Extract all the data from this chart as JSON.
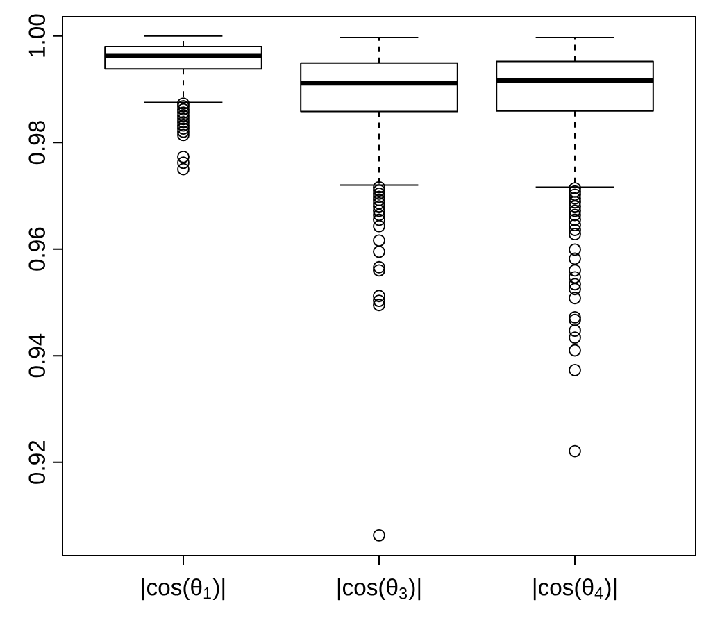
{
  "chart_data": {
    "type": "box",
    "categories": [
      "|cos(θ$_{1}$)|",
      "|cos(θ$_{3}$)|",
      "|cos(θ$_{4}$)|"
    ],
    "ylim": [
      0.9025,
      1.0036
    ],
    "yticks": [
      0.92,
      0.94,
      0.96,
      0.98,
      {
        "value": 1.0,
        "label": "1.00"
      }
    ],
    "boxes": [
      {
        "low": 0.9875,
        "q1": 0.9938,
        "median": 0.9962,
        "q3": 0.998,
        "high": 1.0,
        "outliers": [
          0.9873,
          0.9868,
          0.9862,
          0.9856,
          0.985,
          0.9844,
          0.9838,
          0.9832,
          0.9826,
          0.982,
          0.9814,
          0.9773,
          0.9762,
          0.975
        ]
      },
      {
        "low": 0.972,
        "q1": 0.9858,
        "median": 0.9911,
        "q3": 0.9949,
        "high": 0.9997,
        "outliers": [
          0.9716,
          0.971,
          0.9704,
          0.9698,
          0.9692,
          0.9686,
          0.968,
          0.9672,
          0.9664,
          0.9655,
          0.9643,
          0.9616,
          0.9595,
          0.9566,
          0.956,
          0.9512,
          0.9503,
          0.9495,
          0.9063
        ]
      },
      {
        "low": 0.9716,
        "q1": 0.9859,
        "median": 0.9916,
        "q3": 0.9952,
        "high": 0.9997,
        "outliers": [
          0.9714,
          0.9708,
          0.9702,
          0.9695,
          0.9688,
          0.968,
          0.9672,
          0.9664,
          0.9655,
          0.9645,
          0.9636,
          0.9628,
          0.9599,
          0.9582,
          0.956,
          0.9547,
          0.9534,
          0.9525,
          0.9508,
          0.9472,
          0.9467,
          0.9447,
          0.9434,
          0.941,
          0.9373,
          0.9221
        ]
      }
    ]
  }
}
